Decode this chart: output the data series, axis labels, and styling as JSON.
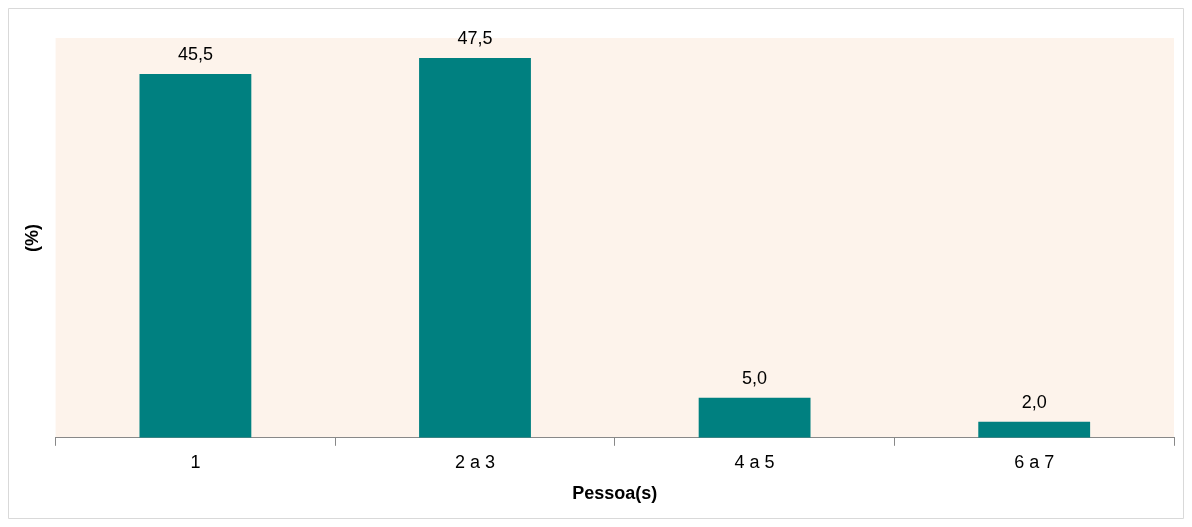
{
  "chart_data": {
    "type": "bar",
    "categories": [
      "1",
      "2 a 3",
      "4 a 5",
      "6 a 7"
    ],
    "values": [
      45.5,
      47.5,
      5.0,
      2.0
    ],
    "value_labels": [
      "45,5",
      "47,5",
      "5,0",
      "2,0"
    ],
    "color": "#008080",
    "xlabel": "Pessoa(s)",
    "ylabel": "(%)",
    "grid": false,
    "legend": false
  }
}
